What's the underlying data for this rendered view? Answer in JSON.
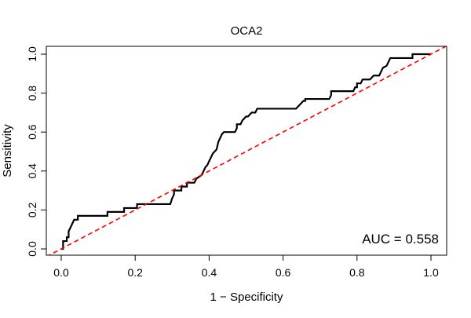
{
  "chart_data": {
    "type": "line",
    "title": "OCA2",
    "xlabel": "1 − Specificity",
    "ylabel": "Sensitivity",
    "xlim": [
      0.0,
      1.0
    ],
    "ylim": [
      0.0,
      1.0
    ],
    "x_ticks": [
      "0.0",
      "0.2",
      "0.4",
      "0.6",
      "0.8",
      "1.0"
    ],
    "y_ticks": [
      "0.0",
      "0.2",
      "0.4",
      "0.6",
      "0.8",
      "1.0"
    ],
    "grid": false,
    "annotation": "AUC = 0.558",
    "series": [
      {
        "color": "#000000",
        "style": "solid",
        "x": [
          0.0,
          0.005,
          0.005,
          0.01,
          0.015,
          0.015,
          0.02,
          0.02,
          0.025,
          0.03,
          0.035,
          0.04,
          0.045,
          0.045,
          0.125,
          0.125,
          0.17,
          0.17,
          0.205,
          0.205,
          0.295,
          0.3,
          0.305,
          0.305,
          0.325,
          0.325,
          0.34,
          0.34,
          0.36,
          0.365,
          0.38,
          0.385,
          0.39,
          0.395,
          0.4,
          0.405,
          0.41,
          0.42,
          0.425,
          0.43,
          0.435,
          0.44,
          0.45,
          0.47,
          0.475,
          0.475,
          0.485,
          0.49,
          0.5,
          0.505,
          0.515,
          0.525,
          0.53,
          0.54,
          0.545,
          0.545,
          0.635,
          0.645,
          0.645,
          0.655,
          0.66,
          0.66,
          0.725,
          0.73,
          0.73,
          0.79,
          0.795,
          0.8,
          0.8,
          0.81,
          0.815,
          0.82,
          0.835,
          0.845,
          0.86,
          0.865,
          0.87,
          0.88,
          0.885,
          0.89,
          0.895,
          0.905,
          0.95,
          0.95,
          1.0
        ],
        "y": [
          0.0,
          0.0,
          0.04,
          0.04,
          0.04,
          0.06,
          0.06,
          0.09,
          0.11,
          0.13,
          0.15,
          0.15,
          0.15,
          0.17,
          0.17,
          0.19,
          0.19,
          0.21,
          0.21,
          0.23,
          0.23,
          0.26,
          0.28,
          0.3,
          0.3,
          0.32,
          0.32,
          0.34,
          0.34,
          0.36,
          0.38,
          0.4,
          0.42,
          0.43,
          0.45,
          0.47,
          0.49,
          0.51,
          0.55,
          0.57,
          0.59,
          0.6,
          0.6,
          0.6,
          0.62,
          0.64,
          0.64,
          0.66,
          0.68,
          0.68,
          0.7,
          0.7,
          0.72,
          0.72,
          0.72,
          0.72,
          0.72,
          0.74,
          0.74,
          0.76,
          0.76,
          0.77,
          0.77,
          0.79,
          0.81,
          0.81,
          0.83,
          0.83,
          0.85,
          0.85,
          0.87,
          0.87,
          0.87,
          0.89,
          0.89,
          0.91,
          0.93,
          0.94,
          0.96,
          0.98,
          0.98,
          0.98,
          0.98,
          1.0,
          1.0
        ]
      },
      {
        "color": "#ff0000",
        "style": "dashed",
        "x": [
          -0.04,
          1.04
        ],
        "y": [
          -0.04,
          1.04
        ]
      }
    ]
  }
}
